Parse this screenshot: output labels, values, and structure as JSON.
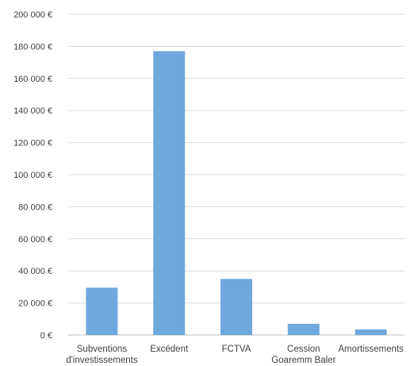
{
  "chart_data": {
    "type": "bar",
    "title": "",
    "xlabel": "",
    "ylabel": "",
    "categories": [
      [
        "Subventions",
        "d'investissements"
      ],
      [
        "Excédent"
      ],
      [
        "FCTVA"
      ],
      [
        "Cession",
        "Goaremm Baler"
      ],
      [
        "Amortissements"
      ]
    ],
    "values": [
      29500,
      177000,
      35000,
      7000,
      3500
    ],
    "ylim": [
      0,
      200000
    ],
    "yticks": [
      "0 €",
      "20 000 €",
      "40 000 €",
      "60 000 €",
      "80 000 €",
      "100 000 €",
      "120 000 €",
      "140 000 €",
      "160 000 €",
      "180 000 €",
      "200 000 €"
    ],
    "grid": true,
    "legend": "none",
    "bar_color": "#6fa8dc",
    "grid_color": "#d9d9d9"
  }
}
